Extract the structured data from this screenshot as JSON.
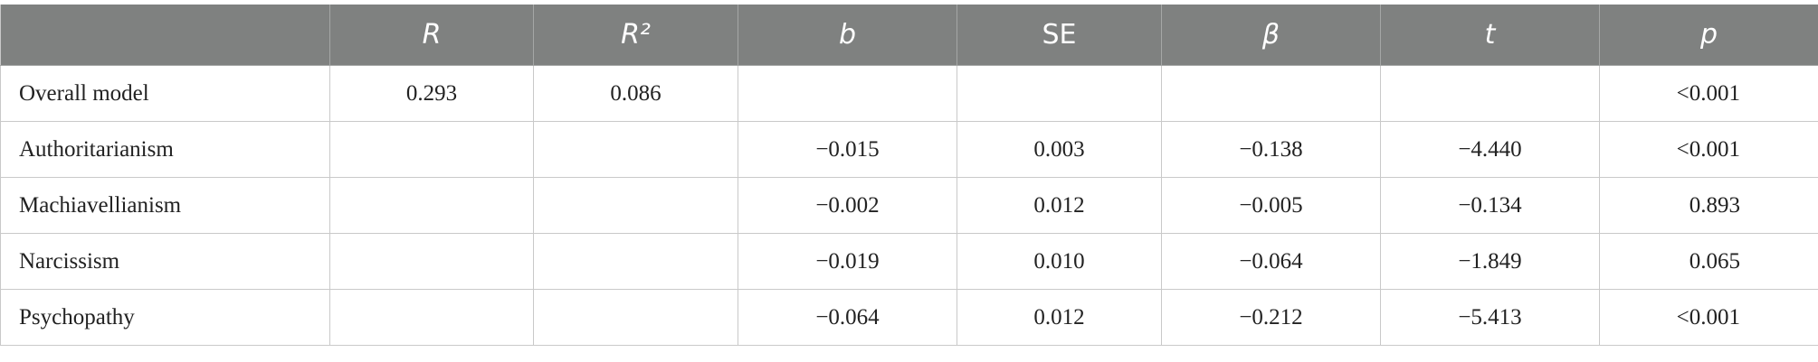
{
  "table": {
    "header": [
      {
        "text": "R",
        "italic": true
      },
      {
        "text": "R²",
        "italic": true
      },
      {
        "text": "b",
        "italic": true
      },
      {
        "text": "SE",
        "italic": false
      },
      {
        "text": "β",
        "italic": true
      },
      {
        "text": "t",
        "italic": true
      },
      {
        "text": "p",
        "italic": true
      }
    ],
    "rows": [
      [
        "Overall model",
        "0.293",
        "0.086",
        null,
        null,
        null,
        null,
        "<0.001"
      ],
      [
        "Authoritarianism",
        null,
        null,
        "−0.015",
        "0.003",
        "−0.138",
        "−4.440",
        "<0.001"
      ],
      [
        "Machiavellianism",
        null,
        null,
        "−0.002",
        "0.012",
        "−0.005",
        "−0.134",
        "0.893"
      ],
      [
        "Narcissism",
        null,
        null,
        "−0.019",
        "0.010",
        "−0.064",
        "−1.849",
        "0.065"
      ],
      [
        "Psychopathy",
        null,
        null,
        "−0.064",
        "0.012",
        "−0.212",
        "−5.413",
        "<0.001"
      ]
    ]
  }
}
